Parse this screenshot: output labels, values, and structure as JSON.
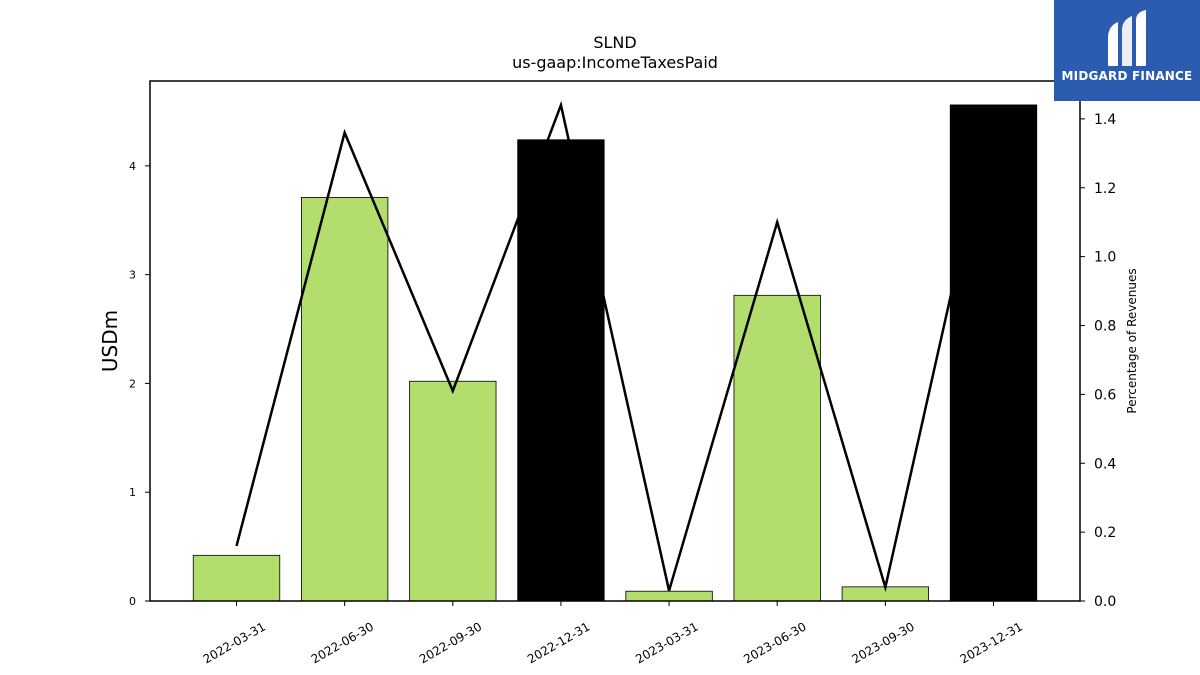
{
  "brand": {
    "name": "MIDGARD FINANCE",
    "color": "#2b5caf"
  },
  "chart_data": {
    "type": "bar",
    "title": "SLND",
    "subtitle": "us-gaap:IncomeTaxesPaid",
    "ylabel": "USDm",
    "y2label": "Percentage of Revenues",
    "categories": [
      "2022-03-31",
      "2022-06-30",
      "2022-09-30",
      "2022-12-31",
      "2023-03-31",
      "2023-06-30",
      "2023-09-30",
      "2023-12-31"
    ],
    "series": [
      {
        "type": "bar",
        "values": [
          0.42,
          3.71,
          2.02,
          4.24,
          0.09,
          2.81,
          0.13,
          4.56
        ],
        "colors": [
          "#b3de6e",
          "#b3de6e",
          "#b3de6e",
          "#000000",
          "#b3de6e",
          "#b3de6e",
          "#b3de6e",
          "#000000"
        ]
      },
      {
        "type": "line",
        "axis": "right",
        "values": [
          0.16,
          1.36,
          0.61,
          1.44,
          0.03,
          1.1,
          0.04,
          1.44
        ],
        "color": "#000000"
      }
    ],
    "ylim": [
      0,
      4.78
    ],
    "yticks": [
      0,
      1,
      2,
      3,
      4
    ],
    "y2lim": [
      0,
      1.51
    ],
    "y2ticks": [
      "0.0",
      "0.2",
      "0.4",
      "0.6",
      "0.8",
      "1.0",
      "1.2",
      "1.4"
    ],
    "grid": false
  }
}
